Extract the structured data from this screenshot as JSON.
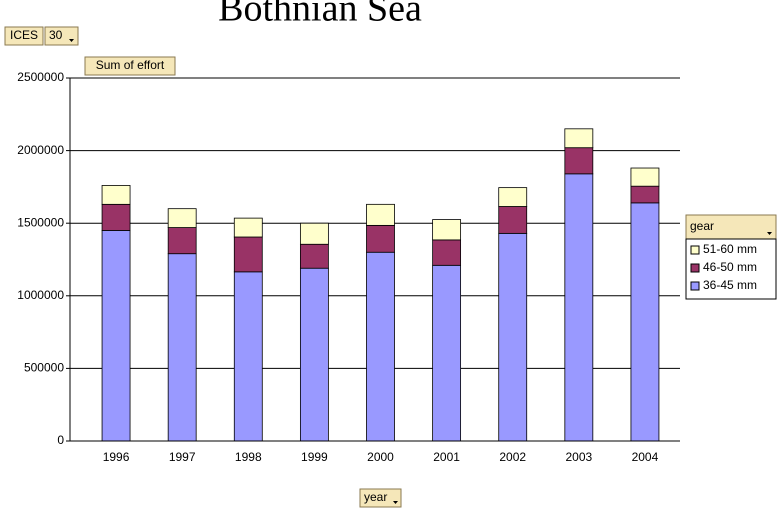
{
  "chart_data": {
    "type": "stacked_bar",
    "title": "Bothnian Sea",
    "page_field": {
      "label": "ICES",
      "value": "30"
    },
    "data_field": "Sum of effort",
    "category_field": "year",
    "series_field": "gear",
    "categories": [
      "1996",
      "1997",
      "1998",
      "1999",
      "2000",
      "2001",
      "2002",
      "2003",
      "2004"
    ],
    "series": [
      {
        "name": "36-45 mm",
        "color": "#9999ff",
        "values": [
          1450000,
          1290000,
          1165000,
          1190000,
          1300000,
          1210000,
          1430000,
          1840000,
          1640000
        ]
      },
      {
        "name": "46-50 mm",
        "color": "#993366",
        "values": [
          180000,
          180000,
          240000,
          165000,
          185000,
          175000,
          185000,
          180000,
          115000
        ]
      },
      {
        "name": "51-60 mm",
        "color": "#ffffcc",
        "values": [
          130000,
          130000,
          130000,
          145000,
          145000,
          140000,
          130000,
          130000,
          125000
        ]
      }
    ],
    "ylim": [
      0,
      2500000
    ],
    "yticks": [
      0,
      500000,
      1000000,
      1500000,
      2000000,
      2500000
    ],
    "grid": true,
    "legend": "right"
  }
}
